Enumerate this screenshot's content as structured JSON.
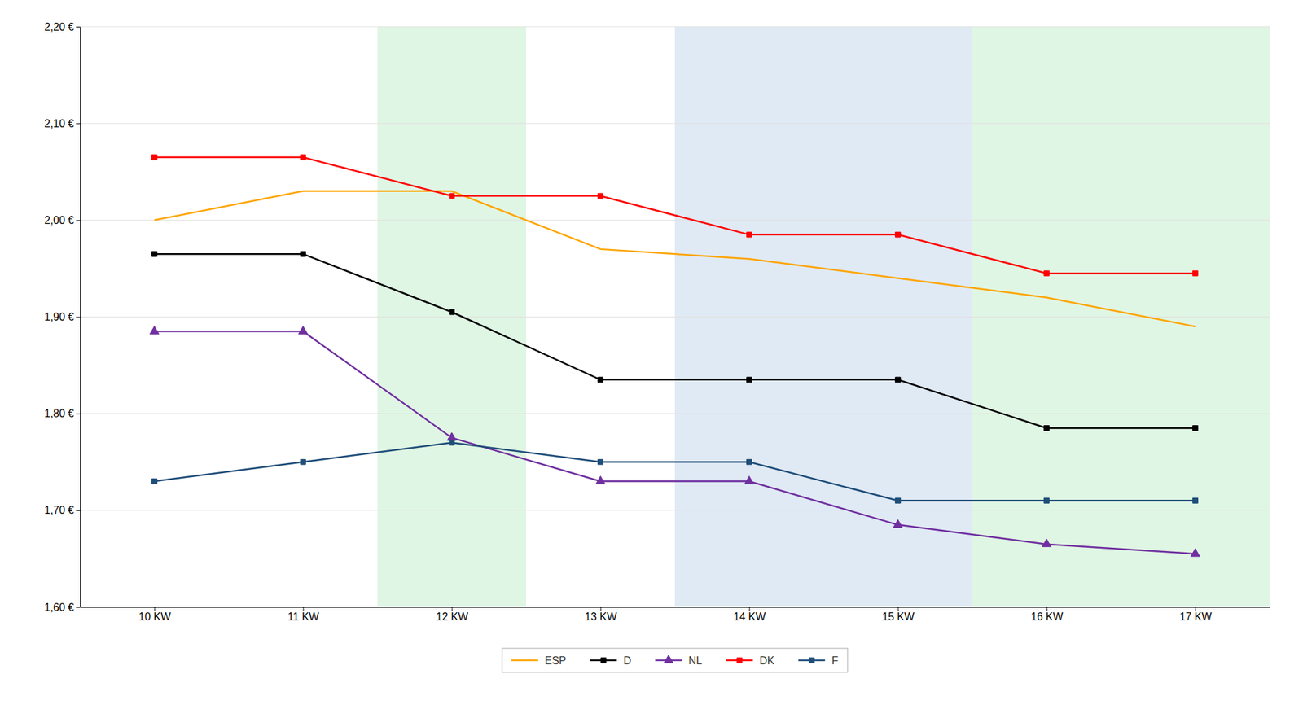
{
  "chart_data": {
    "type": "line",
    "x": [
      10,
      11,
      12,
      13,
      14,
      15,
      16,
      17
    ],
    "xlim": [
      9.5,
      17.5
    ],
    "xticks": [
      {
        "value": 10,
        "label": "10 KW"
      },
      {
        "value": 11,
        "label": "11 KW"
      },
      {
        "value": 12,
        "label": "12 KW"
      },
      {
        "value": 13,
        "label": "13 KW"
      },
      {
        "value": 14,
        "label": "14 KW"
      },
      {
        "value": 15,
        "label": "15 KW"
      },
      {
        "value": 16,
        "label": "16 KW"
      },
      {
        "value": 17,
        "label": "17 KW"
      }
    ],
    "ylim": [
      1.6,
      2.2
    ],
    "yticks": [
      {
        "value": 1.6,
        "label": "1,60 €"
      },
      {
        "value": 1.7,
        "label": "1,70 €"
      },
      {
        "value": 1.8,
        "label": "1,80 €"
      },
      {
        "value": 1.9,
        "label": "1,90 €"
      },
      {
        "value": 2.0,
        "label": "2,00 €"
      },
      {
        "value": 2.1,
        "label": "2,10 €"
      },
      {
        "value": 2.2,
        "label": "2,20 €"
      }
    ],
    "series": [
      {
        "name": "ESP",
        "color": "#FFA500",
        "marker": "none",
        "values": [
          2.0,
          2.03,
          2.03,
          1.97,
          1.96,
          1.94,
          1.92,
          1.89
        ]
      },
      {
        "name": "D",
        "color": "#000000",
        "marker": "square",
        "values": [
          1.965,
          1.965,
          1.905,
          1.835,
          1.835,
          1.835,
          1.785,
          1.785
        ]
      },
      {
        "name": "NL",
        "color": "#7030A0",
        "marker": "triangle",
        "values": [
          1.885,
          1.885,
          1.775,
          1.73,
          1.73,
          1.685,
          1.665,
          1.655
        ]
      },
      {
        "name": "DK",
        "color": "#FF0000",
        "marker": "square",
        "values": [
          2.065,
          2.065,
          2.025,
          2.025,
          1.985,
          1.985,
          1.945,
          1.945
        ]
      },
      {
        "name": "F",
        "color": "#1F4E79",
        "marker": "square",
        "values": [
          1.73,
          1.75,
          1.77,
          1.75,
          1.75,
          1.71,
          1.71,
          1.71
        ]
      }
    ],
    "shading": [
      {
        "x_start": 11.5,
        "x_end": 12.5,
        "color": "#C6EFCE"
      },
      {
        "x_start": 13.5,
        "x_end": 15.5,
        "color": "#C7D9ED"
      },
      {
        "x_start": 15.5,
        "x_end": 17.5,
        "color": "#C6EFCE"
      }
    ],
    "grid": "y",
    "legend": "bottom"
  }
}
